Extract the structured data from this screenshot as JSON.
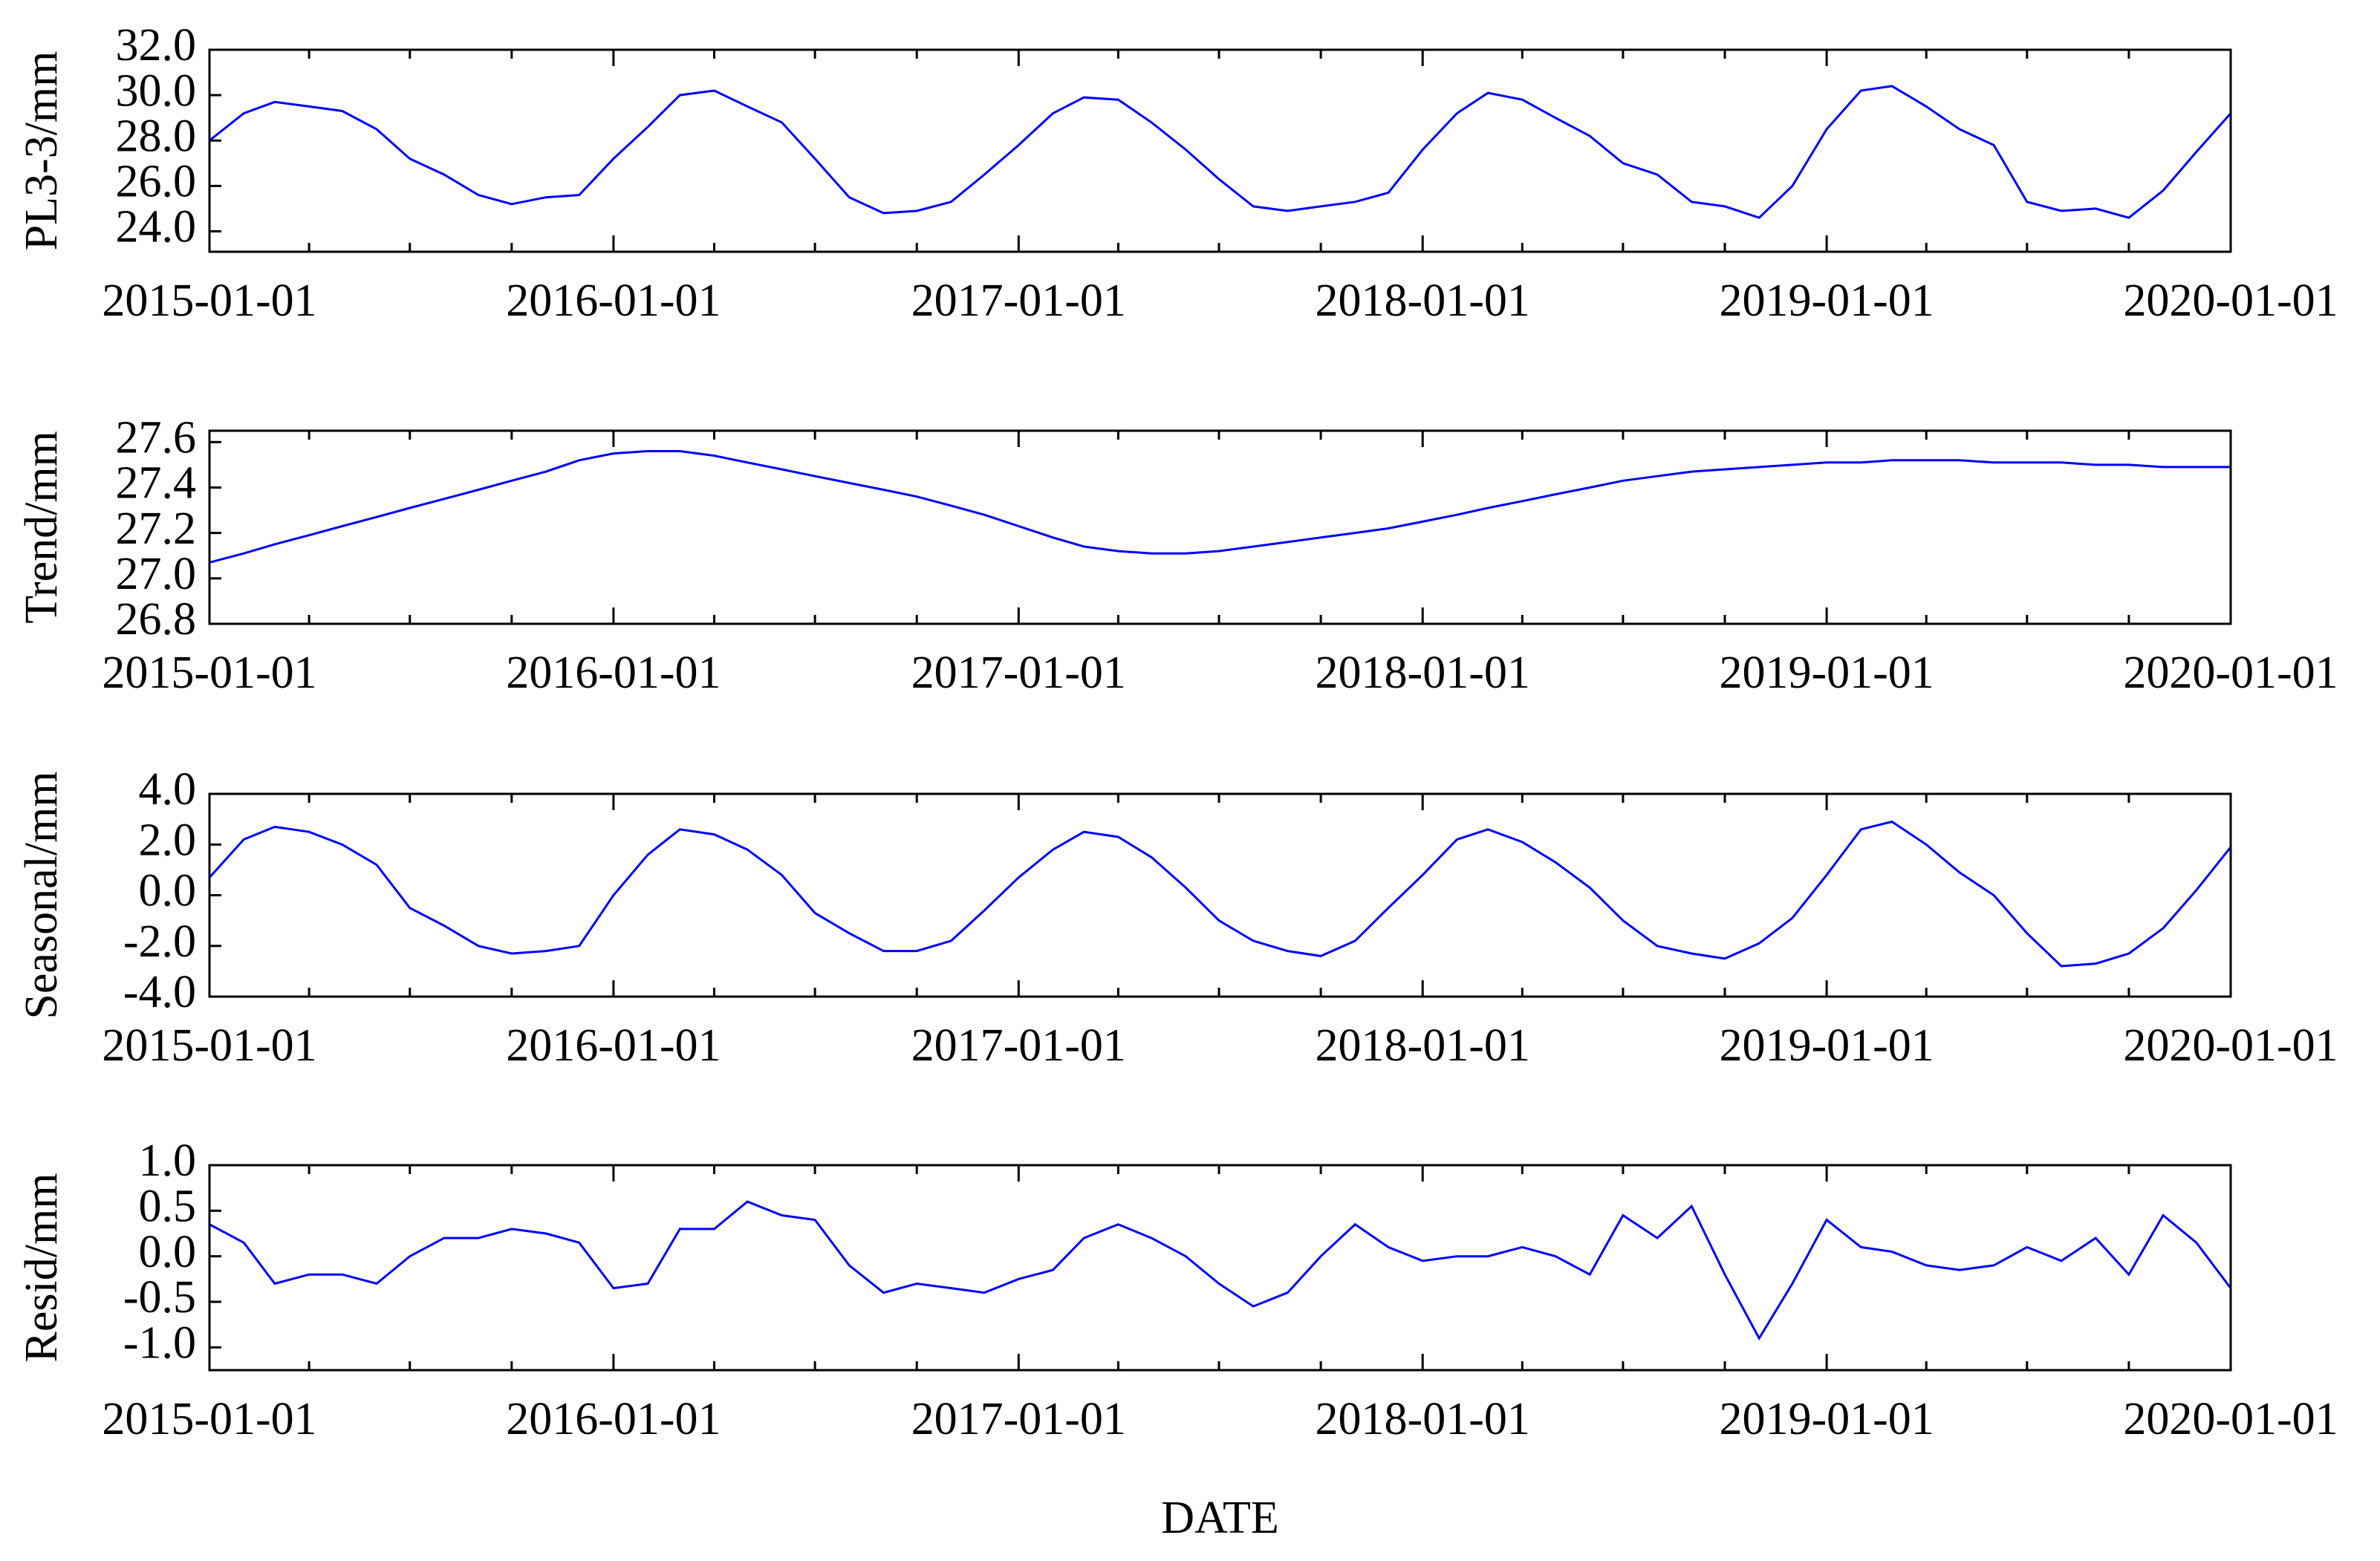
{
  "chart_data": [
    {
      "type": "line",
      "ylabel": "PL3-3/mm",
      "color": "#0000ff",
      "x": [
        "2015-01-01",
        "2015-02-01",
        "2015-03-01",
        "2015-04-01",
        "2015-05-01",
        "2015-06-01",
        "2015-07-01",
        "2015-08-01",
        "2015-09-01",
        "2015-10-01",
        "2015-11-01",
        "2015-12-01",
        "2016-01-01",
        "2016-02-01",
        "2016-03-01",
        "2016-04-01",
        "2016-05-01",
        "2016-06-01",
        "2016-07-01",
        "2016-08-01",
        "2016-09-01",
        "2016-10-01",
        "2016-11-01",
        "2016-12-01",
        "2017-01-01",
        "2017-02-01",
        "2017-03-01",
        "2017-04-01",
        "2017-05-01",
        "2017-06-01",
        "2017-07-01",
        "2017-08-01",
        "2017-09-01",
        "2017-10-01",
        "2017-11-01",
        "2017-12-01",
        "2018-01-01",
        "2018-02-01",
        "2018-03-01",
        "2018-04-01",
        "2018-05-01",
        "2018-06-01",
        "2018-07-01",
        "2018-08-01",
        "2018-09-01",
        "2018-10-01",
        "2018-11-01",
        "2018-12-01",
        "2019-01-01",
        "2019-02-01",
        "2019-03-01",
        "2019-04-01",
        "2019-05-01",
        "2019-06-01",
        "2019-07-01",
        "2019-08-01",
        "2019-09-01",
        "2019-10-01",
        "2019-11-01",
        "2019-12-01",
        "2020-01-01"
      ],
      "values": [
        28.0,
        29.2,
        29.7,
        29.5,
        29.3,
        28.5,
        27.2,
        26.5,
        25.6,
        25.2,
        25.5,
        25.6,
        27.2,
        28.6,
        30.0,
        30.2,
        29.5,
        28.8,
        27.2,
        25.5,
        24.8,
        24.9,
        25.3,
        26.5,
        27.8,
        29.2,
        29.9,
        29.8,
        28.8,
        27.6,
        26.3,
        25.1,
        24.9,
        25.1,
        25.3,
        25.7,
        27.6,
        29.2,
        30.1,
        29.8,
        29.0,
        28.2,
        27.0,
        26.5,
        25.3,
        25.1,
        24.6,
        26.0,
        28.5,
        30.2,
        30.4,
        29.5,
        28.5,
        27.8,
        25.3,
        24.9,
        25.0,
        24.6,
        25.8,
        27.5,
        29.2
      ],
      "xlim": [
        "2015-01-01",
        "2020-01-01"
      ],
      "xticks": [
        "2015-01-01",
        "2016-01-01",
        "2017-01-01",
        "2018-01-01",
        "2019-01-01",
        "2020-01-01"
      ],
      "xminorticks": [
        "2015-04-01",
        "2015-07-01",
        "2015-10-01",
        "2016-04-01",
        "2016-07-01",
        "2016-10-01",
        "2017-04-01",
        "2017-07-01",
        "2017-10-01",
        "2018-04-01",
        "2018-07-01",
        "2018-10-01",
        "2019-04-01",
        "2019-07-01",
        "2019-10-01"
      ],
      "ylim": [
        23.1,
        32
      ],
      "yticks": [
        {
          "value": 24,
          "label": "24.0"
        },
        {
          "value": 26,
          "label": "26.0"
        },
        {
          "value": 28,
          "label": "28.0"
        },
        {
          "value": 30,
          "label": "30.0"
        },
        {
          "value": 32,
          "label": "32.0"
        }
      ]
    },
    {
      "type": "line",
      "ylabel": "Trend/mm",
      "color": "#0000ff",
      "x": [
        "2015-01-01",
        "2015-02-01",
        "2015-03-01",
        "2015-04-01",
        "2015-05-01",
        "2015-06-01",
        "2015-07-01",
        "2015-08-01",
        "2015-09-01",
        "2015-10-01",
        "2015-11-01",
        "2015-12-01",
        "2016-01-01",
        "2016-02-01",
        "2016-03-01",
        "2016-04-01",
        "2016-05-01",
        "2016-06-01",
        "2016-07-01",
        "2016-08-01",
        "2016-09-01",
        "2016-10-01",
        "2016-11-01",
        "2016-12-01",
        "2017-01-01",
        "2017-02-01",
        "2017-03-01",
        "2017-04-01",
        "2017-05-01",
        "2017-06-01",
        "2017-07-01",
        "2017-08-01",
        "2017-09-01",
        "2017-10-01",
        "2017-11-01",
        "2017-12-01",
        "2018-01-01",
        "2018-02-01",
        "2018-03-01",
        "2018-04-01",
        "2018-05-01",
        "2018-06-01",
        "2018-07-01",
        "2018-08-01",
        "2018-09-01",
        "2018-10-01",
        "2018-11-01",
        "2018-12-01",
        "2019-01-01",
        "2019-02-01",
        "2019-03-01",
        "2019-04-01",
        "2019-05-01",
        "2019-06-01",
        "2019-07-01",
        "2019-08-01",
        "2019-09-01",
        "2019-10-01",
        "2019-11-01",
        "2019-12-01",
        "2020-01-01"
      ],
      "values": [
        27.07,
        27.11,
        27.15,
        27.19,
        27.23,
        27.27,
        27.31,
        27.35,
        27.39,
        27.43,
        27.47,
        27.52,
        27.55,
        27.56,
        27.56,
        27.54,
        27.51,
        27.48,
        27.45,
        27.42,
        27.39,
        27.36,
        27.32,
        27.28,
        27.23,
        27.18,
        27.14,
        27.12,
        27.11,
        27.11,
        27.12,
        27.14,
        27.16,
        27.18,
        27.2,
        27.22,
        27.25,
        27.28,
        27.31,
        27.34,
        27.37,
        27.4,
        27.43,
        27.45,
        27.47,
        27.48,
        27.49,
        27.5,
        27.51,
        27.51,
        27.52,
        27.52,
        27.52,
        27.51,
        27.51,
        27.51,
        27.5,
        27.5,
        27.49,
        27.49,
        27.49
      ],
      "xlim": [
        "2015-01-01",
        "2020-01-01"
      ],
      "xticks": [
        "2015-01-01",
        "2016-01-01",
        "2017-01-01",
        "2018-01-01",
        "2019-01-01",
        "2020-01-01"
      ],
      "xminorticks": [
        "2015-04-01",
        "2015-07-01",
        "2015-10-01",
        "2016-04-01",
        "2016-07-01",
        "2016-10-01",
        "2017-04-01",
        "2017-07-01",
        "2017-10-01",
        "2018-04-01",
        "2018-07-01",
        "2018-10-01",
        "2019-04-01",
        "2019-07-01",
        "2019-10-01"
      ],
      "ylim": [
        26.8,
        27.65
      ],
      "yticks": [
        26.8,
        {
          "value": 27,
          "label": "27.0"
        },
        27.2,
        27.4,
        27.6
      ]
    },
    {
      "type": "line",
      "ylabel": "Seasonal/mm",
      "color": "#0000ff",
      "x": [
        "2015-01-01",
        "2015-02-01",
        "2015-03-01",
        "2015-04-01",
        "2015-05-01",
        "2015-06-01",
        "2015-07-01",
        "2015-08-01",
        "2015-09-01",
        "2015-10-01",
        "2015-11-01",
        "2015-12-01",
        "2016-01-01",
        "2016-02-01",
        "2016-03-01",
        "2016-04-01",
        "2016-05-01",
        "2016-06-01",
        "2016-07-01",
        "2016-08-01",
        "2016-09-01",
        "2016-10-01",
        "2016-11-01",
        "2016-12-01",
        "2017-01-01",
        "2017-02-01",
        "2017-03-01",
        "2017-04-01",
        "2017-05-01",
        "2017-06-01",
        "2017-07-01",
        "2017-08-01",
        "2017-09-01",
        "2017-10-01",
        "2017-11-01",
        "2017-12-01",
        "2018-01-01",
        "2018-02-01",
        "2018-03-01",
        "2018-04-01",
        "2018-05-01",
        "2018-06-01",
        "2018-07-01",
        "2018-08-01",
        "2018-09-01",
        "2018-10-01",
        "2018-11-01",
        "2018-12-01",
        "2019-01-01",
        "2019-02-01",
        "2019-03-01",
        "2019-04-01",
        "2019-05-01",
        "2019-06-01",
        "2019-07-01",
        "2019-08-01",
        "2019-09-01",
        "2019-10-01",
        "2019-11-01",
        "2019-12-01",
        "2020-01-01"
      ],
      "values": [
        0.7,
        2.2,
        2.7,
        2.5,
        2.0,
        1.2,
        -0.5,
        -1.2,
        -2.0,
        -2.3,
        -2.2,
        -2.0,
        0.0,
        1.6,
        2.6,
        2.4,
        1.8,
        0.8,
        -0.7,
        -1.5,
        -2.2,
        -2.2,
        -1.8,
        -0.6,
        0.7,
        1.8,
        2.5,
        2.3,
        1.5,
        0.3,
        -1.0,
        -1.8,
        -2.2,
        -2.4,
        -1.8,
        -0.5,
        0.8,
        2.2,
        2.6,
        2.1,
        1.3,
        0.3,
        -1.0,
        -2.0,
        -2.3,
        -2.5,
        -1.9,
        -0.9,
        0.8,
        2.6,
        2.9,
        2.0,
        0.9,
        0.0,
        -1.5,
        -2.8,
        -2.7,
        -2.3,
        -1.3,
        0.2,
        1.9
      ],
      "xlim": [
        "2015-01-01",
        "2020-01-01"
      ],
      "xticks": [
        "2015-01-01",
        "2016-01-01",
        "2017-01-01",
        "2018-01-01",
        "2019-01-01",
        "2020-01-01"
      ],
      "xminorticks": [
        "2015-04-01",
        "2015-07-01",
        "2015-10-01",
        "2016-04-01",
        "2016-07-01",
        "2016-10-01",
        "2017-04-01",
        "2017-07-01",
        "2017-10-01",
        "2018-04-01",
        "2018-07-01",
        "2018-10-01",
        "2019-04-01",
        "2019-07-01",
        "2019-10-01"
      ],
      "ylim": [
        -4,
        4
      ],
      "yticks": [
        {
          "value": -4,
          "label": "-4.0"
        },
        {
          "value": -2,
          "label": "-2.0"
        },
        {
          "value": 0,
          "label": "0.0"
        },
        {
          "value": 2,
          "label": "2.0"
        },
        {
          "value": 4,
          "label": "4.0"
        }
      ]
    },
    {
      "type": "line",
      "ylabel": "Resid/mm",
      "xlabel": "DATE",
      "color": "#0000ff",
      "x": [
        "2015-01-01",
        "2015-02-01",
        "2015-03-01",
        "2015-04-01",
        "2015-05-01",
        "2015-06-01",
        "2015-07-01",
        "2015-08-01",
        "2015-09-01",
        "2015-10-01",
        "2015-11-01",
        "2015-12-01",
        "2016-01-01",
        "2016-02-01",
        "2016-03-01",
        "2016-04-01",
        "2016-05-01",
        "2016-06-01",
        "2016-07-01",
        "2016-08-01",
        "2016-09-01",
        "2016-10-01",
        "2016-11-01",
        "2016-12-01",
        "2017-01-01",
        "2017-02-01",
        "2017-03-01",
        "2017-04-01",
        "2017-05-01",
        "2017-06-01",
        "2017-07-01",
        "2017-08-01",
        "2017-09-01",
        "2017-10-01",
        "2017-11-01",
        "2017-12-01",
        "2018-01-01",
        "2018-02-01",
        "2018-03-01",
        "2018-04-01",
        "2018-05-01",
        "2018-06-01",
        "2018-07-01",
        "2018-08-01",
        "2018-09-01",
        "2018-10-01",
        "2018-11-01",
        "2018-12-01",
        "2019-01-01",
        "2019-02-01",
        "2019-03-01",
        "2019-04-01",
        "2019-05-01",
        "2019-06-01",
        "2019-07-01",
        "2019-08-01",
        "2019-09-01",
        "2019-10-01",
        "2019-11-01",
        "2019-12-01",
        "2020-01-01"
      ],
      "values": [
        0.35,
        0.15,
        -0.3,
        -0.2,
        -0.2,
        -0.3,
        0.0,
        0.2,
        0.2,
        0.3,
        0.25,
        0.15,
        -0.35,
        -0.3,
        0.3,
        0.3,
        0.6,
        0.45,
        0.4,
        -0.1,
        -0.4,
        -0.3,
        -0.35,
        -0.4,
        -0.25,
        -0.15,
        0.2,
        0.35,
        0.2,
        0.0,
        -0.3,
        -0.55,
        -0.4,
        0.0,
        0.35,
        0.1,
        -0.05,
        0.0,
        0.0,
        0.1,
        0.0,
        -0.2,
        0.45,
        0.2,
        0.55,
        -0.2,
        -0.9,
        -0.3,
        0.4,
        0.1,
        0.05,
        -0.1,
        -0.15,
        -0.1,
        0.1,
        -0.05,
        0.2,
        -0.2,
        0.45,
        0.15,
        -0.35
      ],
      "xlim": [
        "2015-01-01",
        "2020-01-01"
      ],
      "xticks": [
        "2015-01-01",
        "2016-01-01",
        "2017-01-01",
        "2018-01-01",
        "2019-01-01",
        "2020-01-01"
      ],
      "xminorticks": [
        "2015-04-01",
        "2015-07-01",
        "2015-10-01",
        "2016-04-01",
        "2016-07-01",
        "2016-10-01",
        "2017-04-01",
        "2017-07-01",
        "2017-10-01",
        "2018-04-01",
        "2018-07-01",
        "2018-10-01",
        "2019-04-01",
        "2019-07-01",
        "2019-10-01"
      ],
      "ylim": [
        -1.25,
        1.0
      ],
      "yticks": [
        {
          "value": -1,
          "label": "-1.0"
        },
        {
          "value": -0.5,
          "label": "-0.5"
        },
        {
          "value": 0,
          "label": "0.0"
        },
        {
          "value": 0.5,
          "label": "0.5"
        },
        {
          "value": 1,
          "label": "1.0"
        }
      ]
    }
  ]
}
